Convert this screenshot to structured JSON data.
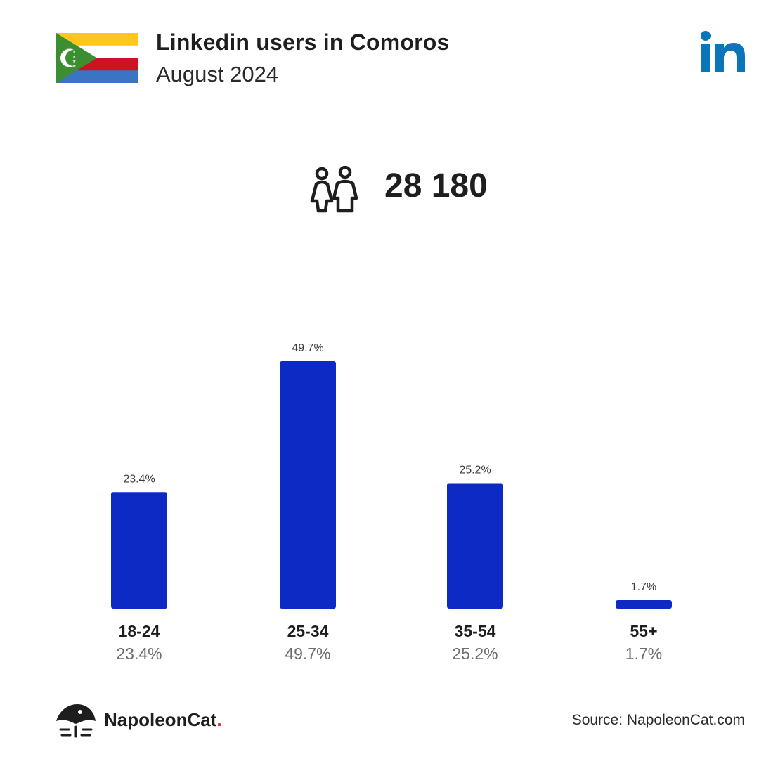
{
  "header": {
    "title": "Linkedin users in Comoros",
    "subtitle": "August 2024"
  },
  "icons": {
    "flag": "comoros-flag-icon",
    "brand": "linkedin-logo-icon",
    "users": "female-male-users-icon",
    "footer": "napoleoncat-logo-icon"
  },
  "summary": {
    "total_users": "28 180"
  },
  "colors": {
    "bar": "#0e2ac4",
    "linkedin_blue": "#0a75b8",
    "flag_yellow": "#ffc61e",
    "flag_white": "#ffffff",
    "flag_red": "#ce1126",
    "flag_blue": "#3a75c4",
    "flag_green": "#3d8e33"
  },
  "chart_data": {
    "type": "bar",
    "categories": [
      "18-24",
      "25-34",
      "35-54",
      "55+"
    ],
    "values": [
      23.4,
      49.7,
      25.2,
      1.7
    ],
    "value_labels": [
      "23.4%",
      "49.7%",
      "25.2%",
      "1.7%"
    ],
    "title": "",
    "xlabel": "",
    "ylabel": "",
    "ylim": [
      0,
      49.7
    ],
    "grid": false,
    "legend": "none"
  },
  "footer": {
    "brand_name": "NapoleonCat",
    "brand_dot": ".",
    "source": "Source: NapoleonCat.com"
  }
}
